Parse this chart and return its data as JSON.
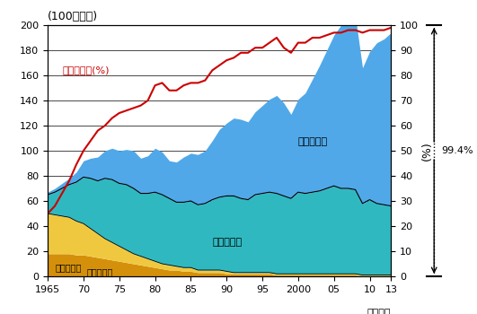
{
  "years": [
    1965,
    1966,
    1967,
    1968,
    1969,
    1970,
    1971,
    1972,
    1973,
    1974,
    1975,
    1976,
    1977,
    1978,
    1979,
    1980,
    1981,
    1982,
    1983,
    1984,
    1985,
    1986,
    1987,
    1988,
    1989,
    1990,
    1991,
    1992,
    1993,
    1994,
    1995,
    1996,
    1997,
    1998,
    1999,
    2000,
    2001,
    2002,
    2003,
    2004,
    2005,
    2006,
    2007,
    2008,
    2009,
    2010,
    2011,
    2012,
    2013
  ],
  "domestic_coking": [
    18,
    18,
    18,
    18,
    17,
    17,
    16,
    15,
    14,
    13,
    12,
    11,
    10,
    9,
    8,
    7,
    6,
    5,
    5,
    4,
    4,
    3,
    3,
    3,
    3,
    2,
    2,
    2,
    2,
    2,
    2,
    2,
    1,
    1,
    1,
    1,
    1,
    1,
    1,
    1,
    1,
    1,
    1,
    1,
    0,
    0,
    0,
    0,
    0
  ],
  "domestic_general": [
    32,
    31,
    30,
    29,
    27,
    25,
    22,
    19,
    16,
    14,
    12,
    10,
    8,
    7,
    6,
    5,
    4,
    4,
    3,
    3,
    3,
    2,
    2,
    2,
    2,
    2,
    1,
    1,
    1,
    1,
    1,
    1,
    1,
    1,
    1,
    1,
    1,
    1,
    1,
    1,
    1,
    1,
    1,
    1,
    1,
    1,
    1,
    1,
    1
  ],
  "import_coking": [
    15,
    18,
    22,
    26,
    31,
    37,
    40,
    42,
    48,
    50,
    50,
    52,
    52,
    50,
    52,
    55,
    55,
    53,
    51,
    52,
    53,
    52,
    53,
    56,
    58,
    60,
    61,
    59,
    58,
    62,
    63,
    64,
    64,
    62,
    60,
    65,
    64,
    65,
    66,
    68,
    70,
    68,
    68,
    67,
    57,
    60,
    57,
    56,
    55
  ],
  "import_general": [
    2,
    3,
    4,
    5,
    8,
    13,
    16,
    19,
    22,
    25,
    26,
    28,
    30,
    28,
    30,
    35,
    34,
    30,
    32,
    36,
    38,
    40,
    42,
    47,
    54,
    58,
    62,
    63,
    62,
    66,
    70,
    74,
    78,
    74,
    67,
    74,
    80,
    90,
    100,
    110,
    120,
    130,
    138,
    138,
    108,
    118,
    128,
    132,
    138
  ],
  "import_ratio": [
    50,
    56,
    66,
    76,
    89,
    100,
    108,
    116,
    120,
    126,
    130,
    132,
    134,
    136,
    140,
    152,
    154,
    148,
    148,
    152,
    154,
    154,
    156,
    164,
    168,
    172,
    174,
    178,
    178,
    182,
    182,
    186,
    190,
    182,
    178,
    186,
    186,
    190,
    190,
    192,
    194,
    194,
    196,
    196,
    194,
    196,
    196,
    196,
    198
  ],
  "ylabel_left": "(100万トン)",
  "ylabel_right": "(%)",
  "xlabel": "（年度）",
  "ylim_left": [
    0,
    200
  ],
  "ylim_right": [
    0,
    100
  ],
  "yticks_left": [
    0,
    20,
    40,
    60,
    80,
    100,
    120,
    140,
    160,
    180,
    200
  ],
  "yticks_right": [
    0,
    10,
    20,
    30,
    40,
    50,
    60,
    70,
    80,
    90,
    100
  ],
  "xticks": [
    1965,
    1970,
    1975,
    1980,
    1985,
    1990,
    1995,
    2000,
    2005,
    2010,
    2013
  ],
  "xticklabels": [
    "1965",
    "70",
    "75",
    "80",
    "85",
    "90",
    "95",
    "2000",
    "05",
    "10",
    "13"
  ],
  "color_domestic_coking": "#D4900A",
  "color_domestic_general": "#F0C840",
  "color_import_coking": "#30B8C0",
  "color_import_general": "#50A8E8",
  "color_line": "#CC0000",
  "annotation_99": "99.4%",
  "label_domestic_coking": "国内原料炭",
  "label_domestic_general": "国内一般炭",
  "label_import_coking": "輸入原料炭",
  "label_import_general": "輸入一般炭",
  "label_ratio": "輸入炭比率(%)"
}
